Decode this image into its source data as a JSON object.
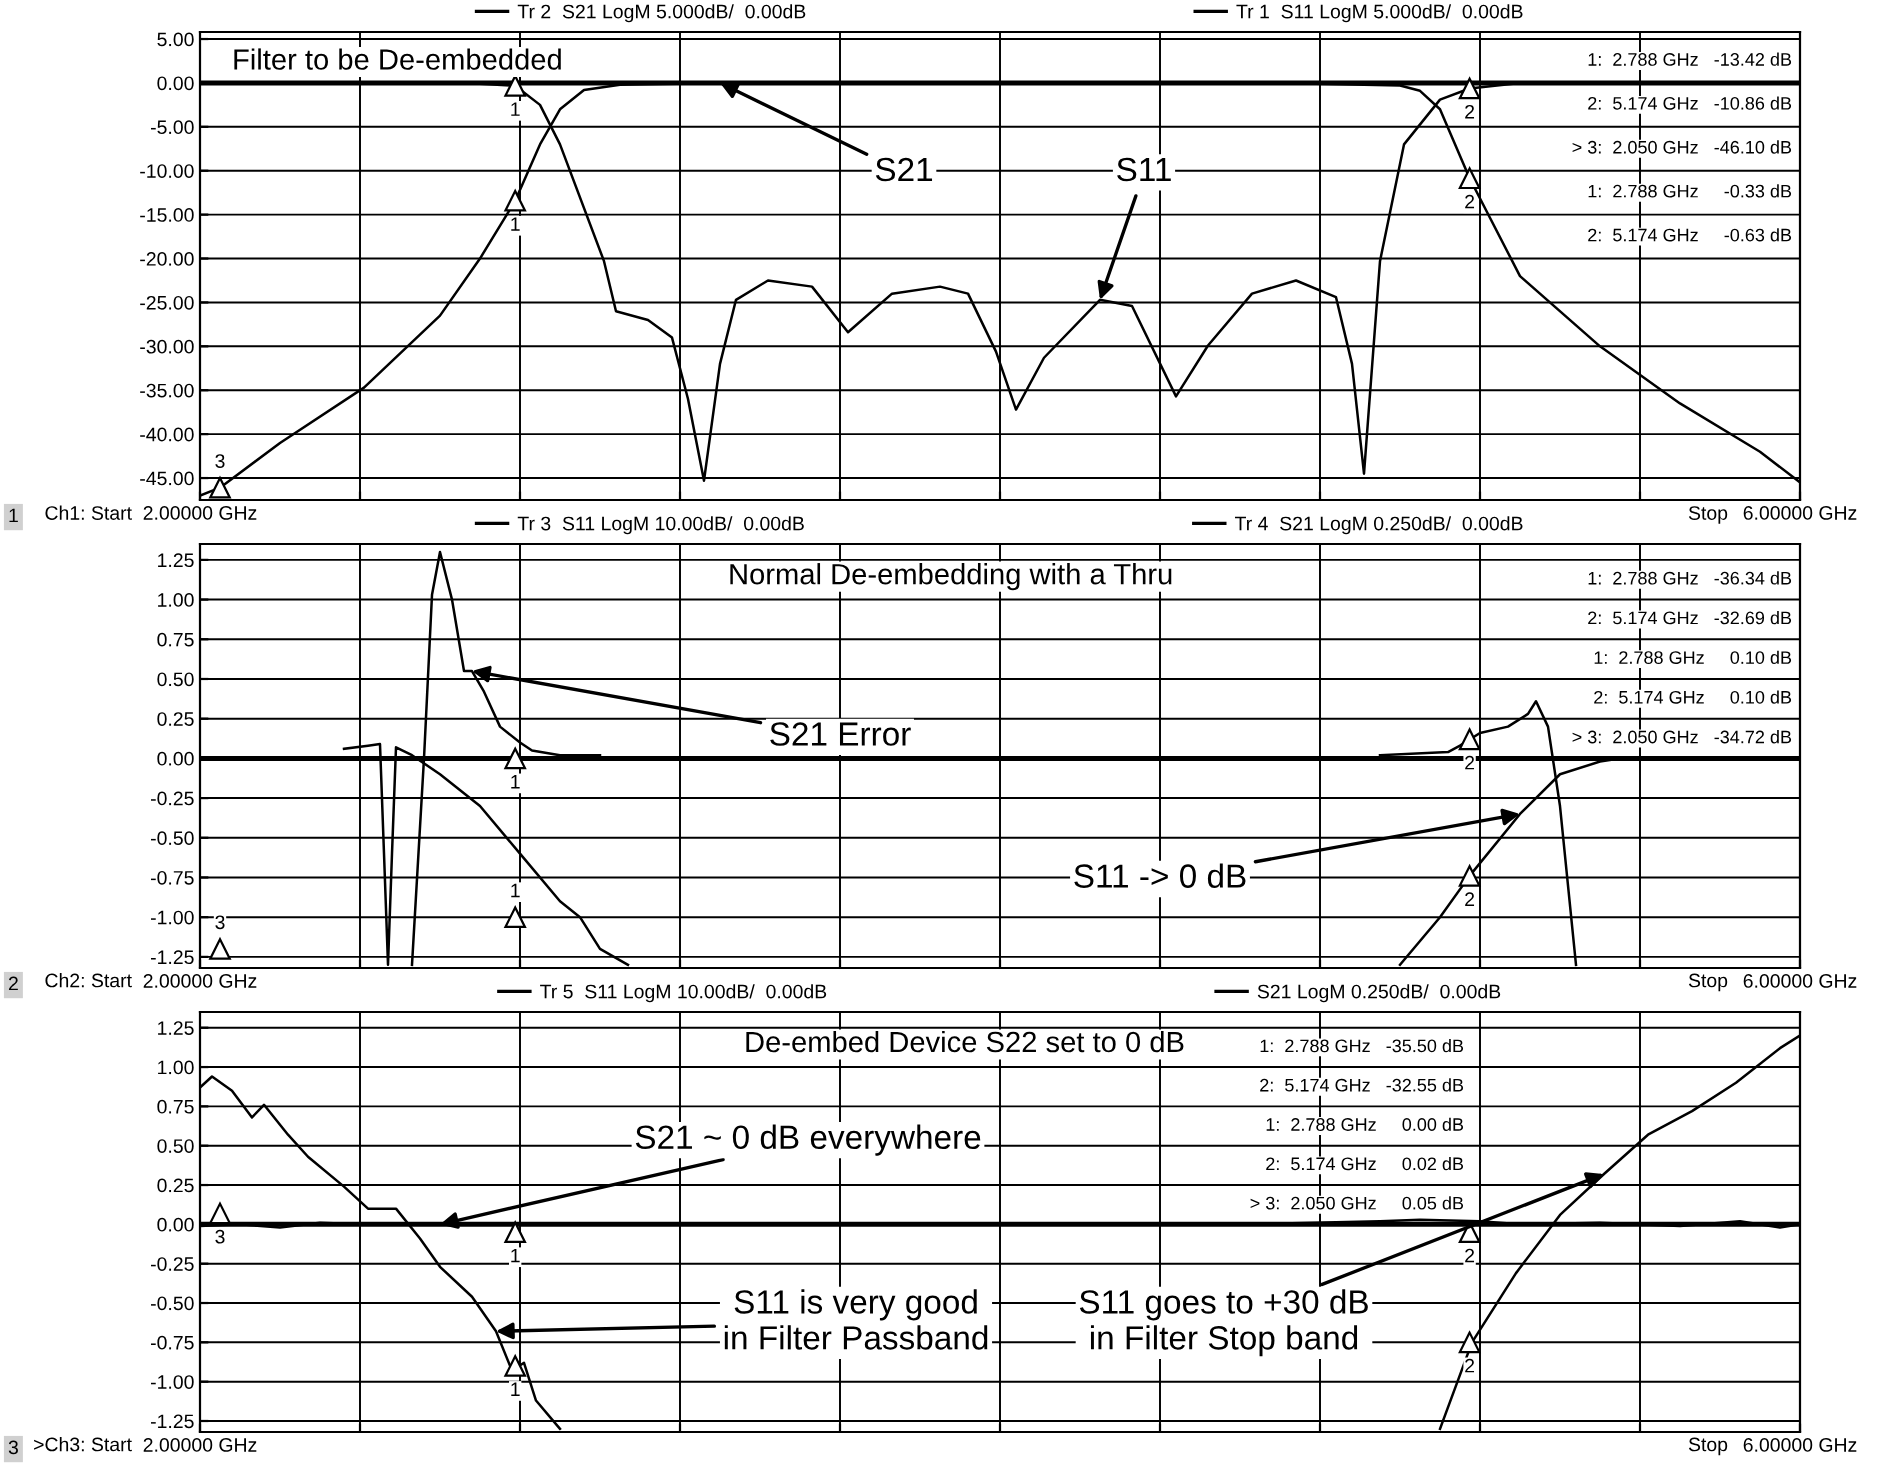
{
  "chart_data": [
    {
      "type": "line",
      "title": "Filter to be De-embedded",
      "xlim": [
        2,
        6
      ],
      "ylim": [
        -47.5,
        5.8
      ],
      "xticks": [
        {
          "value": 2,
          "label": "2.00000 GHz"
        },
        {
          "value": 2.4,
          "label": null
        },
        {
          "value": 2.8,
          "label": null
        },
        {
          "value": 3.2,
          "label": null
        },
        {
          "value": 3.6,
          "label": null
        },
        {
          "value": 4.0,
          "label": null
        },
        {
          "value": 4.4,
          "label": null
        },
        {
          "value": 4.8,
          "label": null
        },
        {
          "value": 5.2,
          "label": null
        },
        {
          "value": 5.6,
          "label": null
        },
        {
          "value": 6,
          "label": "6.00000 GHz"
        }
      ],
      "yticks": [
        {
          "value": 5,
          "label": "5.00"
        },
        {
          "value": 0,
          "label": "0.00"
        },
        {
          "value": -5,
          "label": "-5.00"
        },
        {
          "value": -10,
          "label": "-10.00"
        },
        {
          "value": -15,
          "label": "-15.00"
        },
        {
          "value": -20,
          "label": "-20.00"
        },
        {
          "value": -25,
          "label": "-25.00"
        },
        {
          "value": -30,
          "label": "-30.00"
        },
        {
          "value": -35,
          "label": "-35.00"
        },
        {
          "value": -40,
          "label": "-40.00"
        },
        {
          "value": -45,
          "label": "-45.00"
        }
      ],
      "grid": true,
      "legend": "top",
      "ref_lines": [
        {
          "axis": "y",
          "value": 0,
          "color": "#000000"
        }
      ],
      "series": [
        {
          "name": "Tr 2  S21 LogM 5.000dB/  0.00dB",
          "color": "#000000",
          "x": [
            2.0,
            2.05,
            2.2,
            2.41,
            2.6,
            2.7,
            2.788,
            2.85,
            2.9,
            2.96,
            3.05,
            3.3,
            4.0,
            4.7,
            5.0,
            5.05,
            5.1,
            5.174,
            5.3,
            5.5,
            5.7,
            5.9,
            6.0
          ],
          "values": [
            -47.0,
            -46.1,
            -41.0,
            -34.7,
            -26.5,
            -20.0,
            -13.42,
            -7.0,
            -3.0,
            -0.8,
            -0.2,
            0.0,
            0.0,
            0.0,
            -0.3,
            -0.9,
            -3.0,
            -10.86,
            -22.0,
            -30.0,
            -36.5,
            -42.0,
            -45.5
          ]
        },
        {
          "name": "Tr 1  S11 LogM 5.000dB/  0.00dB",
          "color": "#000000",
          "x": [
            2.0,
            2.5,
            2.7,
            2.788,
            2.85,
            2.9,
            3.01,
            3.04,
            3.12,
            3.18,
            3.22,
            3.26,
            3.3,
            3.34,
            3.42,
            3.53,
            3.62,
            3.73,
            3.85,
            3.92,
            3.99,
            4.04,
            4.11,
            4.25,
            4.33,
            4.44,
            4.52,
            4.63,
            4.74,
            4.84,
            4.88,
            4.91,
            4.95,
            5.01,
            5.1,
            5.174,
            5.3,
            6.0
          ],
          "values": [
            0.0,
            0.0,
            -0.1,
            -0.33,
            -2.5,
            -7.0,
            -20.3,
            -26.0,
            -27.0,
            -29.0,
            -36.0,
            -45.3,
            -32.0,
            -24.7,
            -22.5,
            -23.2,
            -28.4,
            -24.0,
            -23.2,
            -24.0,
            -30.6,
            -37.2,
            -31.3,
            -24.7,
            -25.4,
            -35.7,
            -29.9,
            -24.0,
            -22.5,
            -24.4,
            -32.0,
            -44.5,
            -20.3,
            -7.0,
            -1.9,
            -0.63,
            0.0,
            0.0
          ]
        }
      ],
      "annotations": [
        "1",
        "Ch1: Start",
        "Stop",
        "1:  2.788 GHz   -13.42 dB",
        "2:  5.174 GHz   -10.86 dB",
        "> 3:  2.050 GHz   -46.10 dB",
        "1:  2.788 GHz     -0.33 dB",
        "2:  5.174 GHz     -0.63 dB",
        {
          "text": "S21",
          "x": 3.3,
          "y": 0.0
        },
        {
          "text": "S11",
          "x": 4.25,
          "y": -24.7
        },
        {
          "text": "1",
          "x": 2.788,
          "y": -13.42
        },
        {
          "text": "1",
          "x": 2.788,
          "y": -0.33
        },
        {
          "text": "2",
          "x": 5.174,
          "y": -10.86
        },
        {
          "text": "2",
          "x": 5.174,
          "y": -0.63
        },
        {
          "text": "3",
          "x": 2.05,
          "y": -46.1
        }
      ]
    },
    {
      "type": "line",
      "title": "Normal De-embedding with a Thru",
      "xlim": [
        2,
        6
      ],
      "ylim": [
        -1.32,
        1.35
      ],
      "xticks": [
        {
          "value": 2,
          "label": "2.00000 GHz"
        },
        {
          "value": 2.4,
          "label": null
        },
        {
          "value": 2.8,
          "label": null
        },
        {
          "value": 3.2,
          "label": null
        },
        {
          "value": 3.6,
          "label": null
        },
        {
          "value": 4.0,
          "label": null
        },
        {
          "value": 4.4,
          "label": null
        },
        {
          "value": 4.8,
          "label": null
        },
        {
          "value": 5.2,
          "label": null
        },
        {
          "value": 5.6,
          "label": null
        },
        {
          "value": 6,
          "label": "6.00000 GHz"
        }
      ],
      "yticks": [
        {
          "value": 1.25,
          "label": "1.25"
        },
        {
          "value": 1.0,
          "label": "1.00"
        },
        {
          "value": 0.75,
          "label": "0.75"
        },
        {
          "value": 0.5,
          "label": "0.50"
        },
        {
          "value": 0.25,
          "label": "0.25"
        },
        {
          "value": 0,
          "label": "0.00"
        },
        {
          "value": -0.25,
          "label": "-0.25"
        },
        {
          "value": -0.5,
          "label": "-0.50"
        },
        {
          "value": -0.75,
          "label": "-0.75"
        },
        {
          "value": -1.0,
          "label": "-1.00"
        },
        {
          "value": -1.25,
          "label": "-1.25"
        }
      ],
      "grid": true,
      "legend": "top",
      "ref_lines": [
        {
          "axis": "y",
          "value": 0,
          "color": "#000000"
        }
      ],
      "series": [
        {
          "name": "Tr 3  S11 LogM 10.00dB/  0.00dB",
          "color": "#000000",
          "x": [
            2.36,
            2.42,
            2.45,
            2.46,
            2.47,
            2.48,
            2.49,
            2.53,
            2.6,
            2.7,
            2.8,
            2.9,
            2.95,
            3.0,
            3.07,
            null,
            5.0,
            5.1,
            5.174,
            5.3,
            5.4,
            5.5,
            5.55
          ],
          "values": [
            0.06,
            0.08,
            0.09,
            -0.6,
            -1.3,
            -0.6,
            0.07,
            0.02,
            -0.1,
            -0.3,
            -0.6,
            -0.9,
            -1.0,
            -1.2,
            -1.3,
            null,
            -1.3,
            -1.0,
            -0.74,
            -0.35,
            -0.1,
            -0.02,
            0.0
          ]
        },
        {
          "name": "Tr 4  S21 LogM 0.250dB/  0.00dB",
          "color": "#000000",
          "x": [
            2.53,
            2.56,
            2.58,
            2.6,
            2.63,
            2.66,
            2.68,
            2.71,
            2.75,
            2.8,
            2.83,
            2.9,
            3.0,
            null,
            4.95,
            5.12,
            5.15,
            5.2,
            5.27,
            5.32,
            5.34,
            5.37,
            5.4,
            5.44,
            null,
            5.5,
            5.7
          ],
          "values": [
            -1.3,
            0.0,
            1.03,
            1.3,
            1.0,
            0.55,
            0.55,
            0.42,
            0.2,
            0.1,
            0.05,
            0.02,
            0.02,
            null,
            0.02,
            0.04,
            0.08,
            0.16,
            0.2,
            0.28,
            0.36,
            0.2,
            -0.3,
            -1.3,
            null,
            0.0,
            0.0
          ]
        }
      ],
      "annotations": [
        "2",
        "Ch2: Start",
        "Stop",
        "1:  2.788 GHz   -36.34 dB",
        "2:  5.174 GHz   -32.69 dB",
        "1:  2.788 GHz     0.10 dB",
        "2:  5.174 GHz     0.10 dB",
        "> 3:  2.050 GHz   -34.72 dB",
        {
          "text": "S21 Error",
          "x": 2.68,
          "y": 0.55
        },
        {
          "text": "S11 -> 0 dB",
          "x": 5.3,
          "y": -0.35
        },
        {
          "text": "1",
          "x": 2.788,
          "y": 0.0
        },
        {
          "text": "1",
          "x": 2.788,
          "y": -1.0
        },
        {
          "text": "2",
          "x": 5.174,
          "y": 0.12
        },
        {
          "text": "2",
          "x": 5.174,
          "y": -0.74
        },
        {
          "text": "3",
          "x": 2.05,
          "y": -1.2
        }
      ]
    },
    {
      "type": "line",
      "title": "De-embed Device S22 set to 0 dB",
      "xlim": [
        2,
        6
      ],
      "ylim": [
        -1.32,
        1.35
      ],
      "xticks": [
        {
          "value": 2,
          "label": "2.00000 GHz"
        },
        {
          "value": 2.4,
          "label": null
        },
        {
          "value": 2.8,
          "label": null
        },
        {
          "value": 3.2,
          "label": null
        },
        {
          "value": 3.6,
          "label": null
        },
        {
          "value": 4.0,
          "label": null
        },
        {
          "value": 4.4,
          "label": null
        },
        {
          "value": 4.8,
          "label": null
        },
        {
          "value": 5.2,
          "label": null
        },
        {
          "value": 5.6,
          "label": null
        },
        {
          "value": 6,
          "label": "6.00000 GHz"
        }
      ],
      "yticks": [
        {
          "value": 1.25,
          "label": "1.25"
        },
        {
          "value": 1.0,
          "label": "1.00"
        },
        {
          "value": 0.75,
          "label": "0.75"
        },
        {
          "value": 0.5,
          "label": "0.50"
        },
        {
          "value": 0.25,
          "label": "0.25"
        },
        {
          "value": 0,
          "label": "0.00"
        },
        {
          "value": -0.25,
          "label": "-0.25"
        },
        {
          "value": -0.5,
          "label": "-0.50"
        },
        {
          "value": -0.75,
          "label": "-0.75"
        },
        {
          "value": -1.0,
          "label": "-1.00"
        },
        {
          "value": -1.25,
          "label": "-1.25"
        }
      ],
      "grid": true,
      "legend": "top",
      "ref_lines": [
        {
          "axis": "y",
          "value": 0,
          "color": "#000000"
        }
      ],
      "series": [
        {
          "name": "Tr 5  S11 LogM 10.00dB/  0.00dB",
          "color": "#000000",
          "x": [
            2.0,
            2.03,
            2.08,
            2.13,
            2.16,
            2.22,
            2.27,
            2.36,
            2.42,
            2.49,
            2.55,
            2.6,
            2.68,
            2.74,
            2.78,
            2.81,
            2.84,
            2.9,
            null,
            5.1,
            5.18,
            5.29,
            5.4,
            5.51,
            5.62,
            5.73,
            5.84,
            5.95,
            6.0
          ],
          "values": [
            0.87,
            0.94,
            0.85,
            0.68,
            0.76,
            0.57,
            0.43,
            0.24,
            0.1,
            0.1,
            -0.09,
            -0.27,
            -0.46,
            -0.68,
            -0.93,
            -0.88,
            -1.12,
            -1.3,
            null,
            -1.3,
            -0.75,
            -0.31,
            0.06,
            0.32,
            0.57,
            0.72,
            0.9,
            1.12,
            1.2
          ]
        },
        {
          "name": "S21 LogM 0.250dB/  0.00dB",
          "color": "#000000",
          "x": [
            2.0,
            2.1,
            2.2,
            2.3,
            2.4,
            2.6,
            2.8,
            3.0,
            3.4,
            3.8,
            4.2,
            4.6,
            4.95,
            5.05,
            5.2,
            5.3,
            5.5,
            5.7,
            5.85,
            5.95,
            6.0
          ],
          "values": [
            -0.01,
            0.0,
            -0.02,
            0.01,
            0.0,
            0.0,
            0.0,
            0.0,
            0.0,
            0.0,
            0.0,
            0.0,
            0.02,
            0.03,
            0.02,
            0.0,
            0.01,
            -0.01,
            0.02,
            -0.02,
            0.0
          ]
        }
      ],
      "annotations": [
        "3",
        ">Ch3: Start",
        "Stop",
        "1:  2.788 GHz   -35.50 dB",
        "2:  5.174 GHz   -32.55 dB",
        "1:  2.788 GHz     0.00 dB",
        "2:  5.174 GHz     0.02 dB",
        "> 3:  2.050 GHz     0.05 dB",
        {
          "text": "S21 ~ 0 dB everywhere",
          "x": 2.6,
          "y": 0.0
        },
        {
          "text": "S11 is very good\nin Filter Passband",
          "x": 2.74,
          "y": -0.68
        },
        {
          "text": "S11 goes to +30 dB\nin Filter Stop band",
          "x": 5.51,
          "y": 0.32
        },
        {
          "text": "3",
          "x": 2.05,
          "y": 0.07
        },
        {
          "text": "1",
          "x": 2.788,
          "y": -0.05
        },
        {
          "text": "1",
          "x": 2.788,
          "y": -0.9
        },
        {
          "text": "2",
          "x": 5.174,
          "y": -0.05
        },
        {
          "text": "2",
          "x": 5.174,
          "y": -0.75
        }
      ]
    }
  ]
}
